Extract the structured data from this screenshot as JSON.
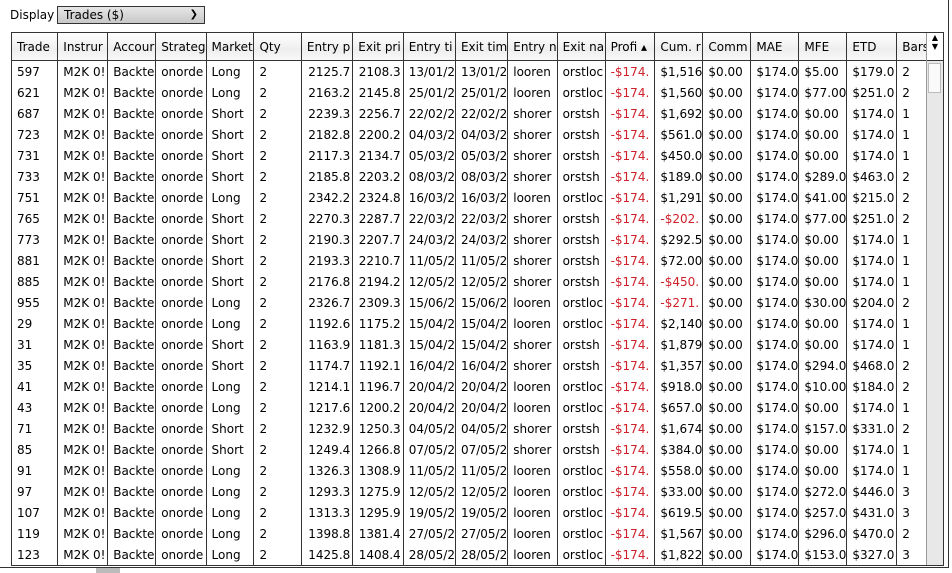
{
  "display": {
    "label": "Display",
    "value": "Trades ($)"
  },
  "columns": [
    "Trade",
    "Instrur",
    "Accour",
    "Strateg",
    "Market",
    "Qty",
    "Entry p",
    "Exit pri",
    "Entry ti",
    "Exit tim",
    "Entry n",
    "Exit na",
    "Profi",
    "Cum. r",
    "Comm",
    "MAE",
    "MFE",
    "ETD",
    "Bars"
  ],
  "sort": {
    "column": "Profi",
    "direction": "ascending"
  },
  "rows": [
    [
      "597",
      "M2K 0!",
      "Backte",
      "onorde",
      "Long",
      "2",
      "2125.7",
      "2108.3",
      "13/01/2",
      "13/01/2",
      "looren",
      "orstloc",
      "-$174.",
      "$1,516",
      "$0.00",
      "$174.0",
      "$5.00",
      "$179.0",
      "2"
    ],
    [
      "621",
      "M2K 0!",
      "Backte",
      "onorde",
      "Long",
      "2",
      "2163.2",
      "2145.8",
      "25/01/2",
      "25/01/2",
      "looren",
      "orstloc",
      "-$174.",
      "$1,560",
      "$0.00",
      "$174.0",
      "$77.00",
      "$251.0",
      "2"
    ],
    [
      "687",
      "M2K 0!",
      "Backte",
      "onorde",
      "Short",
      "2",
      "2239.3",
      "2256.7",
      "22/02/2",
      "22/02/2",
      "shorer",
      "orstsh",
      "-$174.",
      "$1,692",
      "$0.00",
      "$174.0",
      "$0.00",
      "$174.0",
      "1"
    ],
    [
      "723",
      "M2K 0!",
      "Backte",
      "onorde",
      "Short",
      "2",
      "2182.8",
      "2200.2",
      "04/03/2",
      "04/03/2",
      "shorer",
      "orstsh",
      "-$174.",
      "$561.0",
      "$0.00",
      "$174.0",
      "$0.00",
      "$174.0",
      "1"
    ],
    [
      "731",
      "M2K 0!",
      "Backte",
      "onorde",
      "Short",
      "2",
      "2117.3",
      "2134.7",
      "05/03/2",
      "05/03/2",
      "shorer",
      "orstsh",
      "-$174.",
      "$450.0",
      "$0.00",
      "$174.0",
      "$0.00",
      "$174.0",
      "1"
    ],
    [
      "733",
      "M2K 0!",
      "Backte",
      "onorde",
      "Short",
      "2",
      "2185.8",
      "2203.2",
      "08/03/2",
      "08/03/2",
      "shorer",
      "orstsh",
      "-$174.",
      "$189.0",
      "$0.00",
      "$174.0",
      "$289.0",
      "$463.0",
      "2"
    ],
    [
      "751",
      "M2K 0!",
      "Backte",
      "onorde",
      "Long",
      "2",
      "2342.2",
      "2324.8",
      "16/03/2",
      "16/03/2",
      "looren",
      "orstloc",
      "-$174.",
      "$1,291",
      "$0.00",
      "$174.0",
      "$41.00",
      "$215.0",
      "2"
    ],
    [
      "765",
      "M2K 0!",
      "Backte",
      "onorde",
      "Short",
      "2",
      "2270.3",
      "2287.7",
      "22/03/2",
      "22/03/2",
      "shorer",
      "orstsh",
      "-$174.",
      "-$202.",
      "$0.00",
      "$174.0",
      "$77.00",
      "$251.0",
      "2"
    ],
    [
      "773",
      "M2K 0!",
      "Backte",
      "onorde",
      "Short",
      "2",
      "2190.3",
      "2207.7",
      "24/03/2",
      "24/03/2",
      "shorer",
      "orstsh",
      "-$174.",
      "$292.5",
      "$0.00",
      "$174.0",
      "$0.00",
      "$174.0",
      "1"
    ],
    [
      "881",
      "M2K 0!",
      "Backte",
      "onorde",
      "Short",
      "2",
      "2193.3",
      "2210.7",
      "11/05/2",
      "11/05/2",
      "shorer",
      "orstsh",
      "-$174.",
      "$72.00",
      "$0.00",
      "$174.0",
      "$0.00",
      "$174.0",
      "1"
    ],
    [
      "885",
      "M2K 0!",
      "Backte",
      "onorde",
      "Short",
      "2",
      "2176.8",
      "2194.2",
      "12/05/2",
      "12/05/2",
      "shorer",
      "orstsh",
      "-$174.",
      "-$450.",
      "$0.00",
      "$174.0",
      "$0.00",
      "$174.0",
      "1"
    ],
    [
      "955",
      "M2K 0!",
      "Backte",
      "onorde",
      "Long",
      "2",
      "2326.7",
      "2309.3",
      "15/06/2",
      "15/06/2",
      "looren",
      "orstloc",
      "-$174.",
      "-$271.",
      "$0.00",
      "$174.0",
      "$30.00",
      "$204.0",
      "2"
    ],
    [
      "29",
      "M2K 0!",
      "Backte",
      "onorde",
      "Long",
      "2",
      "1192.6",
      "1175.2",
      "15/04/2",
      "15/04/2",
      "looren",
      "orstloc",
      "-$174.",
      "$2,140",
      "$0.00",
      "$174.0",
      "$0.00",
      "$174.0",
      "1"
    ],
    [
      "31",
      "M2K 0!",
      "Backte",
      "onorde",
      "Short",
      "2",
      "1163.9",
      "1181.3",
      "15/04/2",
      "15/04/2",
      "shorer",
      "orstsh",
      "-$174.",
      "$1,879",
      "$0.00",
      "$174.0",
      "$0.00",
      "$174.0",
      "1"
    ],
    [
      "35",
      "M2K 0!",
      "Backte",
      "onorde",
      "Short",
      "2",
      "1174.7",
      "1192.1",
      "16/04/2",
      "16/04/2",
      "shorer",
      "orstsh",
      "-$174.",
      "$1,357",
      "$0.00",
      "$174.0",
      "$294.0",
      "$468.0",
      "2"
    ],
    [
      "41",
      "M2K 0!",
      "Backte",
      "onorde",
      "Long",
      "2",
      "1214.1",
      "1196.7",
      "20/04/2",
      "20/04/2",
      "looren",
      "orstloc",
      "-$174.",
      "$918.0",
      "$0.00",
      "$174.0",
      "$10.00",
      "$184.0",
      "2"
    ],
    [
      "43",
      "M2K 0!",
      "Backte",
      "onorde",
      "Long",
      "2",
      "1217.6",
      "1200.2",
      "20/04/2",
      "20/04/2",
      "looren",
      "orstloc",
      "-$174.",
      "$657.0",
      "$0.00",
      "$174.0",
      "$0.00",
      "$174.0",
      "1"
    ],
    [
      "71",
      "M2K 0!",
      "Backte",
      "onorde",
      "Short",
      "2",
      "1232.9",
      "1250.3",
      "04/05/2",
      "04/05/2",
      "shorer",
      "orstsh",
      "-$174.",
      "$1,674",
      "$0.00",
      "$174.0",
      "$157.0",
      "$331.0",
      "2"
    ],
    [
      "85",
      "M2K 0!",
      "Backte",
      "onorde",
      "Short",
      "2",
      "1249.4",
      "1266.8",
      "07/05/2",
      "07/05/2",
      "shorer",
      "orstsh",
      "-$174.",
      "$384.0",
      "$0.00",
      "$174.0",
      "$0.00",
      "$174.0",
      "1"
    ],
    [
      "91",
      "M2K 0!",
      "Backte",
      "onorde",
      "Long",
      "2",
      "1326.3",
      "1308.9",
      "11/05/2",
      "11/05/2",
      "looren",
      "orstloc",
      "-$174.",
      "$558.0",
      "$0.00",
      "$174.0",
      "$0.00",
      "$174.0",
      "1"
    ],
    [
      "97",
      "M2K 0!",
      "Backte",
      "onorde",
      "Long",
      "2",
      "1293.3",
      "1275.9",
      "12/05/2",
      "12/05/2",
      "looren",
      "orstloc",
      "-$174.",
      "$33.00",
      "$0.00",
      "$174.0",
      "$272.0",
      "$446.0",
      "3"
    ],
    [
      "107",
      "M2K 0!",
      "Backte",
      "onorde",
      "Long",
      "2",
      "1313.3",
      "1295.9",
      "19/05/2",
      "19/05/2",
      "looren",
      "orstloc",
      "-$174.",
      "$619.5",
      "$0.00",
      "$174.0",
      "$257.0",
      "$431.0",
      "3"
    ],
    [
      "119",
      "M2K 0!",
      "Backte",
      "onorde",
      "Long",
      "2",
      "1398.8",
      "1381.4",
      "27/05/2",
      "27/05/2",
      "looren",
      "orstloc",
      "-$174.",
      "$1,567",
      "$0.00",
      "$174.0",
      "$296.0",
      "$470.0",
      "2"
    ],
    [
      "123",
      "M2K 0!",
      "Backte",
      "onorde",
      "Long",
      "2",
      "1425.8",
      "1408.4",
      "28/05/2",
      "28/05/2",
      "looren",
      "orstloc",
      "-$174.",
      "$1,822",
      "$0.00",
      "$174.0",
      "$153.0",
      "$327.0",
      "3"
    ]
  ],
  "colors": {
    "negative": "#d0202a"
  }
}
